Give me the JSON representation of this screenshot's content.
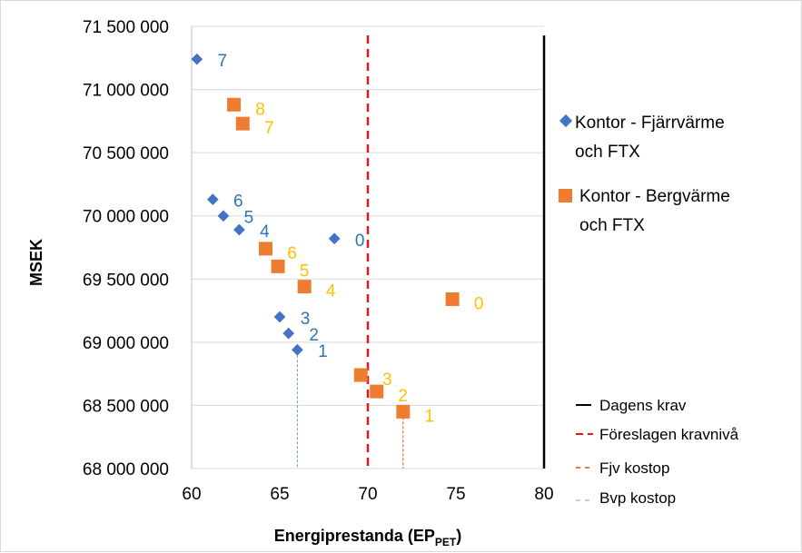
{
  "chart_data": {
    "type": "scatter",
    "title": "",
    "xlabel_main": "Energiprestanda (EP",
    "xlabel_sub": "PET",
    "xlabel_end": ")",
    "ylabel": "MSEK",
    "xlim": [
      60,
      80
    ],
    "ylim": [
      68000000,
      71500000
    ],
    "x_ticks": [
      60,
      65,
      70,
      75,
      80
    ],
    "y_ticks": [
      {
        "value": 71500000,
        "label": "71 500 000"
      },
      {
        "value": 71000000,
        "label": "71 000 000"
      },
      {
        "value": 70500000,
        "label": "70 500 000"
      },
      {
        "value": 70000000,
        "label": "70 000 000"
      },
      {
        "value": 69500000,
        "label": "69 500 000"
      },
      {
        "value": 69000000,
        "label": "69 000 000"
      },
      {
        "value": 68500000,
        "label": "68 500 000"
      },
      {
        "value": 68000000,
        "label": "68 000 000"
      }
    ],
    "grid": "horizontal",
    "legend_position": "right",
    "series": [
      {
        "name_line1": "Kontor - Fjärrvärme",
        "name_line2": "och FTX",
        "marker": "diamond",
        "color": "#4472C4",
        "label_color": "#2E75B6",
        "points": [
          {
            "x": 60.3,
            "y": 71240000,
            "label": "7"
          },
          {
            "x": 61.2,
            "y": 70130000,
            "label": "6"
          },
          {
            "x": 61.8,
            "y": 70000000,
            "label": "5"
          },
          {
            "x": 62.7,
            "y": 69890000,
            "label": "4"
          },
          {
            "x": 65.0,
            "y": 69200000,
            "label": "3"
          },
          {
            "x": 65.5,
            "y": 69070000,
            "label": "2"
          },
          {
            "x": 66.0,
            "y": 68940000,
            "label": "1"
          },
          {
            "x": 68.1,
            "y": 69820000,
            "label": "0"
          }
        ]
      },
      {
        "name_line1": "Kontor - Bergvärme",
        "name_line2": "och FTX",
        "marker": "square",
        "color": "#ED7D31",
        "label_color": "#FFC000",
        "points": [
          {
            "x": 62.4,
            "y": 70880000,
            "label": "8"
          },
          {
            "x": 62.9,
            "y": 70730000,
            "label": "7"
          },
          {
            "x": 64.2,
            "y": 69740000,
            "label": "6"
          },
          {
            "x": 64.9,
            "y": 69600000,
            "label": "5"
          },
          {
            "x": 66.4,
            "y": 69440000,
            "label": "4"
          },
          {
            "x": 69.6,
            "y": 68740000,
            "label": "3"
          },
          {
            "x": 70.5,
            "y": 68610000,
            "label": "2"
          },
          {
            "x": 72.0,
            "y": 68450000,
            "label": "1"
          },
          {
            "x": 74.8,
            "y": 69340000,
            "label": "0"
          }
        ]
      }
    ],
    "reference_lines": [
      {
        "name": "Dagens krav",
        "x": 80,
        "color": "#000000",
        "style": "solid"
      },
      {
        "name": "Föreslagen kravnivå",
        "x": 70,
        "color": "#E3161B",
        "style": "dashed"
      },
      {
        "name": "Fjv kostop",
        "x": 72,
        "color": "#C55A11",
        "style": "dotted",
        "y_top": 68450000
      },
      {
        "name": "Bvp kostop",
        "x": 66,
        "color": "#5B9BD5",
        "style": "dotted",
        "y_top": 68940000
      }
    ]
  }
}
